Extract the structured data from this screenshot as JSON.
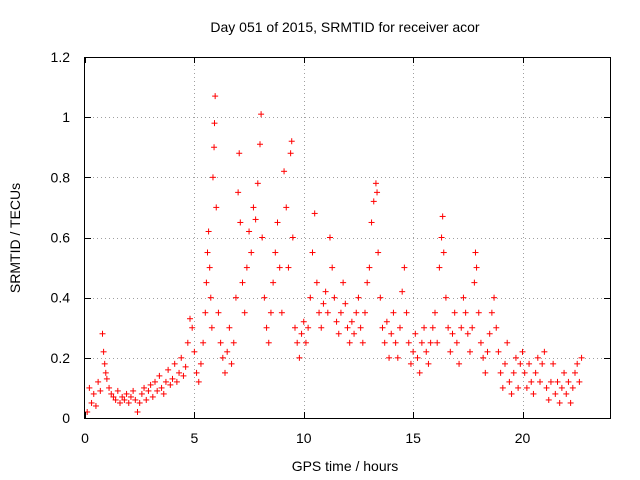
{
  "chart_data": {
    "type": "scatter",
    "title": "Day 051 of 2015, SRMTID for receiver acor",
    "xlabel": "GPS time / hours",
    "ylabel": "SRMTID / TECUs",
    "xlim": [
      0,
      24
    ],
    "ylim": [
      0,
      1.2
    ],
    "xticks": [
      0,
      5,
      10,
      15,
      20
    ],
    "xtick_labels": [
      "0",
      "5",
      "10",
      "15",
      "20"
    ],
    "yticks": [
      0,
      0.2,
      0.4,
      0.6,
      0.8,
      1,
      1.2
    ],
    "ytick_labels": [
      "0",
      "0.2",
      "0.4",
      "0.6",
      "0.8",
      "1",
      "1.2"
    ],
    "grid": true,
    "marker": "+",
    "color": "#ff0000",
    "series": [
      {
        "name": "SRMTID",
        "points": [
          [
            0.1,
            0.02
          ],
          [
            0.2,
            0.1
          ],
          [
            0.3,
            0.05
          ],
          [
            0.4,
            0.08
          ],
          [
            0.5,
            0.04
          ],
          [
            0.6,
            0.12
          ],
          [
            0.7,
            0.09
          ],
          [
            0.8,
            0.28
          ],
          [
            0.85,
            0.22
          ],
          [
            0.9,
            0.18
          ],
          [
            0.95,
            0.15
          ],
          [
            1.0,
            0.13
          ],
          [
            1.1,
            0.1
          ],
          [
            1.2,
            0.08
          ],
          [
            1.3,
            0.07
          ],
          [
            1.4,
            0.06
          ],
          [
            1.5,
            0.09
          ],
          [
            1.6,
            0.05
          ],
          [
            1.7,
            0.07
          ],
          [
            1.8,
            0.06
          ],
          [
            1.9,
            0.08
          ],
          [
            2.0,
            0.05
          ],
          [
            2.1,
            0.07
          ],
          [
            2.2,
            0.09
          ],
          [
            2.3,
            0.06
          ],
          [
            2.4,
            0.02
          ],
          [
            2.5,
            0.05
          ],
          [
            2.6,
            0.08
          ],
          [
            2.7,
            0.1
          ],
          [
            2.8,
            0.06
          ],
          [
            2.9,
            0.09
          ],
          [
            3.0,
            0.11
          ],
          [
            3.1,
            0.07
          ],
          [
            3.2,
            0.12
          ],
          [
            3.3,
            0.09
          ],
          [
            3.4,
            0.14
          ],
          [
            3.5,
            0.1
          ],
          [
            3.6,
            0.08
          ],
          [
            3.7,
            0.12
          ],
          [
            3.8,
            0.16
          ],
          [
            3.9,
            0.11
          ],
          [
            4.0,
            0.13
          ],
          [
            4.1,
            0.18
          ],
          [
            4.2,
            0.12
          ],
          [
            4.3,
            0.15
          ],
          [
            4.4,
            0.2
          ],
          [
            4.5,
            0.14
          ],
          [
            4.6,
            0.17
          ],
          [
            4.7,
            0.25
          ],
          [
            4.8,
            0.33
          ],
          [
            4.9,
            0.3
          ],
          [
            5.0,
            0.22
          ],
          [
            5.1,
            0.15
          ],
          [
            5.2,
            0.12
          ],
          [
            5.3,
            0.18
          ],
          [
            5.4,
            0.25
          ],
          [
            5.5,
            0.35
          ],
          [
            5.55,
            0.45
          ],
          [
            5.6,
            0.55
          ],
          [
            5.65,
            0.62
          ],
          [
            5.7,
            0.5
          ],
          [
            5.75,
            0.4
          ],
          [
            5.8,
            0.3
          ],
          [
            5.85,
            0.8
          ],
          [
            5.9,
            0.9
          ],
          [
            5.92,
            0.98
          ],
          [
            5.95,
            1.07
          ],
          [
            6.0,
            0.7
          ],
          [
            6.1,
            0.35
          ],
          [
            6.2,
            0.25
          ],
          [
            6.3,
            0.2
          ],
          [
            6.4,
            0.15
          ],
          [
            6.5,
            0.22
          ],
          [
            6.6,
            0.3
          ],
          [
            6.7,
            0.18
          ],
          [
            6.8,
            0.25
          ],
          [
            6.9,
            0.4
          ],
          [
            7.0,
            0.75
          ],
          [
            7.05,
            0.88
          ],
          [
            7.1,
            0.65
          ],
          [
            7.2,
            0.45
          ],
          [
            7.3,
            0.35
          ],
          [
            7.4,
            0.5
          ],
          [
            7.5,
            0.62
          ],
          [
            7.6,
            0.55
          ],
          [
            7.7,
            0.7
          ],
          [
            7.8,
            0.66
          ],
          [
            7.9,
            0.78
          ],
          [
            8.0,
            0.91
          ],
          [
            8.05,
            1.01
          ],
          [
            8.1,
            0.6
          ],
          [
            8.2,
            0.4
          ],
          [
            8.3,
            0.3
          ],
          [
            8.4,
            0.25
          ],
          [
            8.5,
            0.35
          ],
          [
            8.6,
            0.45
          ],
          [
            8.7,
            0.55
          ],
          [
            8.8,
            0.65
          ],
          [
            8.9,
            0.5
          ],
          [
            9.0,
            0.35
          ],
          [
            9.1,
            0.82
          ],
          [
            9.2,
            0.7
          ],
          [
            9.3,
            0.5
          ],
          [
            9.4,
            0.88
          ],
          [
            9.45,
            0.92
          ],
          [
            9.5,
            0.6
          ],
          [
            9.6,
            0.3
          ],
          [
            9.7,
            0.25
          ],
          [
            9.8,
            0.2
          ],
          [
            9.9,
            0.28
          ],
          [
            10.0,
            0.32
          ],
          [
            10.1,
            0.25
          ],
          [
            10.2,
            0.3
          ],
          [
            10.3,
            0.4
          ],
          [
            10.4,
            0.55
          ],
          [
            10.5,
            0.68
          ],
          [
            10.6,
            0.45
          ],
          [
            10.7,
            0.35
          ],
          [
            10.8,
            0.3
          ],
          [
            10.9,
            0.38
          ],
          [
            11.0,
            0.42
          ],
          [
            11.1,
            0.35
          ],
          [
            11.2,
            0.6
          ],
          [
            11.3,
            0.5
          ],
          [
            11.4,
            0.4
          ],
          [
            11.5,
            0.32
          ],
          [
            11.6,
            0.28
          ],
          [
            11.7,
            0.35
          ],
          [
            11.8,
            0.45
          ],
          [
            11.9,
            0.38
          ],
          [
            12.0,
            0.3
          ],
          [
            12.1,
            0.25
          ],
          [
            12.2,
            0.32
          ],
          [
            12.3,
            0.28
          ],
          [
            12.4,
            0.35
          ],
          [
            12.5,
            0.4
          ],
          [
            12.6,
            0.3
          ],
          [
            12.7,
            0.25
          ],
          [
            12.8,
            0.35
          ],
          [
            12.9,
            0.45
          ],
          [
            13.0,
            0.5
          ],
          [
            13.1,
            0.65
          ],
          [
            13.2,
            0.72
          ],
          [
            13.3,
            0.78
          ],
          [
            13.35,
            0.75
          ],
          [
            13.4,
            0.55
          ],
          [
            13.5,
            0.4
          ],
          [
            13.6,
            0.3
          ],
          [
            13.7,
            0.25
          ],
          [
            13.8,
            0.32
          ],
          [
            13.9,
            0.2
          ],
          [
            14.0,
            0.28
          ],
          [
            14.1,
            0.35
          ],
          [
            14.2,
            0.25
          ],
          [
            14.3,
            0.2
          ],
          [
            14.4,
            0.3
          ],
          [
            14.5,
            0.42
          ],
          [
            14.6,
            0.5
          ],
          [
            14.7,
            0.35
          ],
          [
            14.8,
            0.25
          ],
          [
            14.9,
            0.18
          ],
          [
            15.0,
            0.22
          ],
          [
            15.1,
            0.28
          ],
          [
            15.2,
            0.2
          ],
          [
            15.3,
            0.15
          ],
          [
            15.4,
            0.25
          ],
          [
            15.5,
            0.3
          ],
          [
            15.6,
            0.22
          ],
          [
            15.7,
            0.18
          ],
          [
            15.8,
            0.25
          ],
          [
            15.9,
            0.3
          ],
          [
            16.0,
            0.35
          ],
          [
            16.1,
            0.25
          ],
          [
            16.2,
            0.5
          ],
          [
            16.3,
            0.6
          ],
          [
            16.35,
            0.67
          ],
          [
            16.4,
            0.55
          ],
          [
            16.5,
            0.4
          ],
          [
            16.6,
            0.3
          ],
          [
            16.7,
            0.22
          ],
          [
            16.8,
            0.28
          ],
          [
            16.9,
            0.35
          ],
          [
            17.0,
            0.25
          ],
          [
            17.1,
            0.18
          ],
          [
            17.2,
            0.3
          ],
          [
            17.3,
            0.4
          ],
          [
            17.4,
            0.35
          ],
          [
            17.5,
            0.28
          ],
          [
            17.6,
            0.22
          ],
          [
            17.7,
            0.3
          ],
          [
            17.8,
            0.45
          ],
          [
            17.85,
            0.55
          ],
          [
            17.9,
            0.5
          ],
          [
            18.0,
            0.35
          ],
          [
            18.1,
            0.25
          ],
          [
            18.2,
            0.2
          ],
          [
            18.3,
            0.15
          ],
          [
            18.4,
            0.22
          ],
          [
            18.5,
            0.28
          ],
          [
            18.6,
            0.35
          ],
          [
            18.7,
            0.4
          ],
          [
            18.8,
            0.3
          ],
          [
            18.9,
            0.22
          ],
          [
            19.0,
            0.15
          ],
          [
            19.1,
            0.1
          ],
          [
            19.2,
            0.18
          ],
          [
            19.3,
            0.25
          ],
          [
            19.4,
            0.12
          ],
          [
            19.5,
            0.08
          ],
          [
            19.6,
            0.15
          ],
          [
            19.7,
            0.2
          ],
          [
            19.8,
            0.1
          ],
          [
            19.9,
            0.18
          ],
          [
            20.0,
            0.22
          ],
          [
            20.1,
            0.15
          ],
          [
            20.2,
            0.1
          ],
          [
            20.3,
            0.18
          ],
          [
            20.4,
            0.12
          ],
          [
            20.5,
            0.08
          ],
          [
            20.6,
            0.15
          ],
          [
            20.7,
            0.2
          ],
          [
            20.8,
            0.12
          ],
          [
            20.9,
            0.18
          ],
          [
            21.0,
            0.22
          ],
          [
            21.1,
            0.1
          ],
          [
            21.2,
            0.06
          ],
          [
            21.3,
            0.12
          ],
          [
            21.4,
            0.18
          ],
          [
            21.5,
            0.08
          ],
          [
            21.6,
            0.12
          ],
          [
            21.7,
            0.05
          ],
          [
            21.8,
            0.1
          ],
          [
            21.9,
            0.15
          ],
          [
            22.0,
            0.08
          ],
          [
            22.1,
            0.12
          ],
          [
            22.2,
            0.05
          ],
          [
            22.3,
            0.1
          ],
          [
            22.4,
            0.15
          ],
          [
            22.5,
            0.18
          ],
          [
            22.6,
            0.12
          ],
          [
            22.7,
            0.2
          ]
        ]
      }
    ]
  }
}
